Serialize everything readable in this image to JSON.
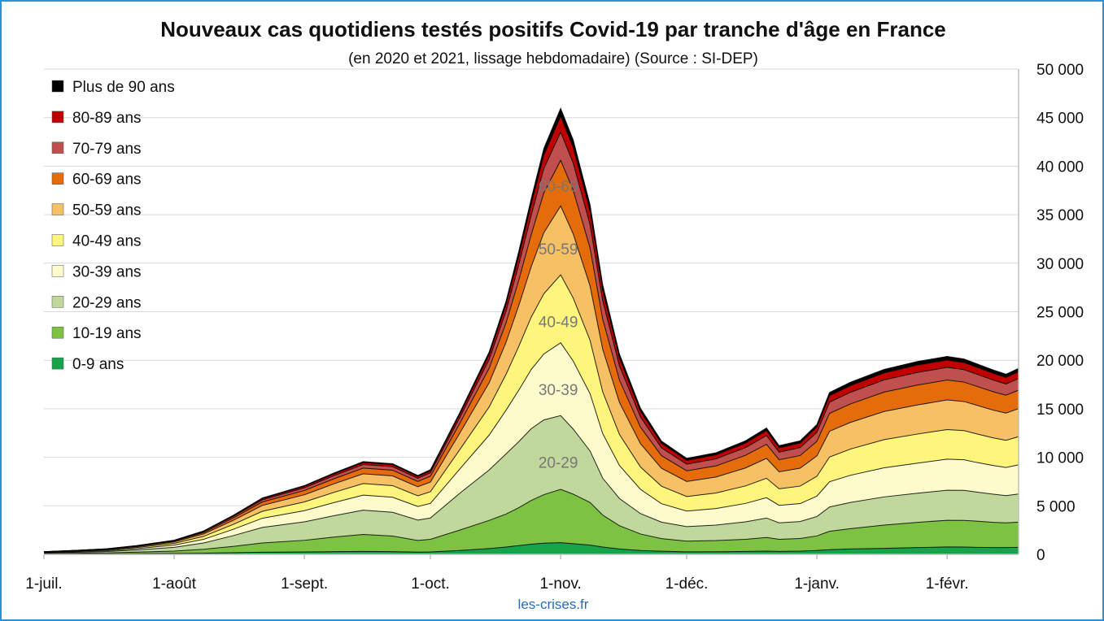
{
  "chart_data": {
    "type": "area",
    "stacked": true,
    "title": "Nouveaux cas quotidiens testés positifs Covid-19 par tranche d'âge en France",
    "subtitle": "(en 2020 et 2021, lissage hebdomadaire) (Source : SI-DEP)",
    "source_label": "les-crises.fr",
    "x_tick_labels": [
      "1-juil.",
      "1-août",
      "1-sept.",
      "1-oct.",
      "1-nov.",
      "1-déc.",
      "1-janv.",
      "1-févr."
    ],
    "x_tick_days": [
      0,
      31,
      62,
      92,
      123,
      153,
      184,
      215
    ],
    "x_range_days": [
      0,
      232
    ],
    "y_tick_labels": [
      "0",
      "5 000",
      "10 000",
      "15 000",
      "20 000",
      "25 000",
      "30 000",
      "35 000",
      "40 000",
      "45 000",
      "50 000"
    ],
    "ylim": [
      0,
      50000
    ],
    "y_axis_position": "right",
    "grid": true,
    "legend_position": "left",
    "x_days": [
      0,
      8,
      15,
      22,
      31,
      38,
      45,
      52,
      62,
      69,
      76,
      83,
      89,
      92,
      99,
      106,
      110,
      113,
      116,
      119,
      123,
      126,
      130,
      133,
      137,
      142,
      147,
      153,
      160,
      167,
      172,
      175,
      180,
      184,
      187,
      192,
      200,
      208,
      215,
      219,
      222,
      226,
      229,
      232
    ],
    "series": [
      {
        "name": "0-9 ans",
        "color": "#16a34a",
        "values": [
          30,
          40,
          50,
          70,
          90,
          120,
          170,
          220,
          250,
          280,
          300,
          280,
          230,
          250,
          400,
          600,
          750,
          900,
          1050,
          1150,
          1200,
          1100,
          950,
          750,
          550,
          400,
          320,
          260,
          270,
          300,
          340,
          300,
          330,
          400,
          480,
          550,
          620,
          700,
          760,
          750,
          720,
          700,
          700,
          720
        ]
      },
      {
        "name": "10-19 ans",
        "color": "#7dc242",
        "values": [
          60,
          80,
          100,
          160,
          250,
          400,
          650,
          950,
          1200,
          1500,
          1750,
          1600,
          1200,
          1300,
          2100,
          2900,
          3400,
          3900,
          4500,
          5000,
          5500,
          5100,
          4400,
          3300,
          2400,
          1700,
          1300,
          1100,
          1150,
          1250,
          1400,
          1250,
          1300,
          1500,
          1900,
          2100,
          2400,
          2600,
          2750,
          2750,
          2700,
          2600,
          2550,
          2600
        ]
      },
      {
        "name": "20-29 ans",
        "color": "#c1d89d",
        "values": [
          70,
          100,
          140,
          220,
          380,
          650,
          1100,
          1600,
          1900,
          2200,
          2500,
          2450,
          2100,
          2200,
          3800,
          5200,
          6200,
          6800,
          7400,
          7700,
          7600,
          6700,
          5300,
          3800,
          2800,
          2100,
          1700,
          1500,
          1600,
          1800,
          2000,
          1700,
          1750,
          2000,
          2500,
          2700,
          2900,
          3000,
          3100,
          3100,
          3000,
          2900,
          2800,
          2900
        ]
      },
      {
        "name": "30-39 ans",
        "color": "#fdfbcc",
        "values": [
          40,
          60,
          90,
          140,
          230,
          380,
          650,
          950,
          1150,
          1350,
          1550,
          1550,
          1400,
          1500,
          2500,
          3600,
          4500,
          5300,
          6100,
          6800,
          7500,
          7000,
          5900,
          4600,
          3400,
          2500,
          1900,
          1600,
          1700,
          1900,
          2100,
          1800,
          1850,
          2100,
          2600,
          2800,
          3000,
          3100,
          3200,
          3150,
          3050,
          2950,
          2900,
          3000
        ]
      },
      {
        "name": "40-49 ans",
        "color": "#fdf57c",
        "values": [
          30,
          50,
          70,
          110,
          180,
          300,
          500,
          720,
          900,
          1050,
          1200,
          1200,
          1100,
          1200,
          2000,
          2900,
          3700,
          4500,
          5400,
          6200,
          7000,
          6500,
          5500,
          4300,
          3200,
          2300,
          1800,
          1500,
          1600,
          1800,
          2000,
          1700,
          1800,
          2050,
          2550,
          2700,
          2900,
          3000,
          3050,
          3000,
          2950,
          2850,
          2800,
          2900
        ]
      },
      {
        "name": "50-59 ans",
        "color": "#f6c065",
        "values": [
          20,
          40,
          60,
          90,
          150,
          250,
          420,
          600,
          740,
          880,
          1000,
          1000,
          930,
          1000,
          1700,
          2500,
          3300,
          4200,
          5200,
          6300,
          7100,
          6600,
          5600,
          4400,
          3300,
          2400,
          1850,
          1550,
          1650,
          1850,
          2050,
          1750,
          1850,
          2100,
          2650,
          2750,
          2900,
          3000,
          3050,
          3000,
          2950,
          2850,
          2800,
          2900
        ]
      },
      {
        "name": "60-69 ans",
        "color": "#e46c0a",
        "values": [
          10,
          20,
          30,
          50,
          80,
          140,
          240,
          360,
          440,
          520,
          590,
          590,
          550,
          600,
          1000,
          1500,
          2000,
          2600,
          3300,
          4100,
          4700,
          4500,
          3900,
          3100,
          2300,
          1700,
          1300,
          1100,
          1150,
          1300,
          1450,
          1250,
          1300,
          1500,
          1850,
          1900,
          2000,
          2050,
          2050,
          2000,
          1950,
          1900,
          1850,
          1900
        ]
      },
      {
        "name": "70-79 ans",
        "color": "#c0504d",
        "values": [
          10,
          15,
          20,
          30,
          50,
          90,
          150,
          220,
          270,
          320,
          360,
          360,
          330,
          360,
          600,
          900,
          1200,
          1600,
          2000,
          2500,
          2900,
          2800,
          2400,
          1900,
          1450,
          1050,
          800,
          680,
          720,
          800,
          900,
          780,
          820,
          930,
          1150,
          1200,
          1250,
          1300,
          1300,
          1280,
          1250,
          1200,
          1150,
          1200
        ]
      },
      {
        "name": "80-89 ans",
        "color": "#c00000",
        "values": [
          5,
          10,
          15,
          20,
          35,
          55,
          90,
          130,
          160,
          190,
          210,
          210,
          195,
          210,
          350,
          520,
          700,
          920,
          1150,
          1400,
          1650,
          1600,
          1400,
          1100,
          830,
          600,
          470,
          400,
          420,
          470,
          520,
          450,
          470,
          540,
          670,
          700,
          730,
          760,
          760,
          740,
          720,
          700,
          680,
          700
        ]
      },
      {
        "name": "Plus de 90 ans",
        "color": "#000000",
        "values": [
          5,
          5,
          5,
          10,
          15,
          25,
          40,
          60,
          75,
          90,
          100,
          100,
          95,
          100,
          170,
          250,
          340,
          450,
          560,
          680,
          800,
          780,
          680,
          540,
          410,
          300,
          230,
          200,
          210,
          230,
          260,
          220,
          230,
          265,
          330,
          340,
          360,
          370,
          370,
          360,
          350,
          340,
          330,
          340
        ]
      }
    ],
    "in_chart_labels": [
      {
        "text": "60-69",
        "x_day": 123,
        "y": 38000
      },
      {
        "text": "50-59",
        "x_day": 123,
        "y": 31500
      },
      {
        "text": "40-49",
        "x_day": 123,
        "y": 24000
      },
      {
        "text": "30-39",
        "x_day": 123,
        "y": 17000
      },
      {
        "text": "20-29",
        "x_day": 123,
        "y": 9500
      }
    ]
  }
}
